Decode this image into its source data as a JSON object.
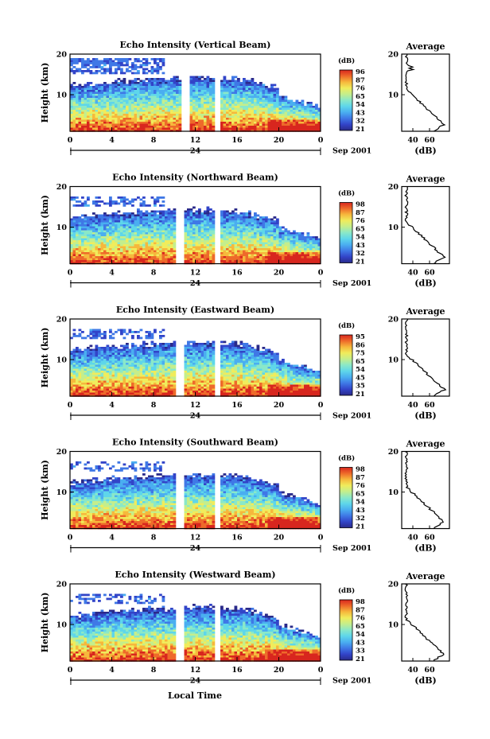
{
  "colorscale": [
    "#2a2a8a",
    "#3244c8",
    "#3f78e6",
    "#4aaef0",
    "#5ed6ea",
    "#8ae8c8",
    "#c4ee8c",
    "#f0ec5c",
    "#f6b83c",
    "#ee6a2a",
    "#d8261e"
  ],
  "chart_data": [
    {
      "type": "heatmap",
      "title": "Echo Intensity (Vertical Beam)",
      "ylabel": "Height (km)",
      "xticks": [
        "0",
        "4",
        "8",
        "12",
        "16",
        "20",
        "0"
      ],
      "yticks": [
        "10",
        "20"
      ],
      "xlim": [
        0,
        24
      ],
      "ylim": [
        1,
        20
      ],
      "date_label": "24",
      "date_suffix": "Sep 2001",
      "colorbar": {
        "unit": "(dB)",
        "ticks": [
          "96",
          "87",
          "76",
          "65",
          "54",
          "43",
          "32",
          "21"
        ]
      },
      "gaps_hours": [
        [
          10.6,
          11.5
        ],
        [
          13.8,
          14.3
        ]
      ],
      "average_profile": {
        "title": "Average",
        "xlabel": "(dB)",
        "xticks": [
          "40",
          "60"
        ],
        "yticks": [
          "10",
          "20"
        ]
      }
    },
    {
      "type": "heatmap",
      "title": "Echo Intensity (Northward Beam)",
      "ylabel": "Height (km)",
      "xticks": [
        "0",
        "4",
        "8",
        "12",
        "16",
        "20",
        "0"
      ],
      "yticks": [
        "10",
        "20"
      ],
      "xlim": [
        0,
        24
      ],
      "ylim": [
        1,
        20
      ],
      "date_label": "24",
      "date_suffix": "Sep 2001",
      "colorbar": {
        "unit": "(dB)",
        "ticks": [
          "98",
          "87",
          "76",
          "65",
          "54",
          "43",
          "32",
          "21"
        ]
      },
      "gaps_hours": [
        [
          10.2,
          11.0
        ],
        [
          13.8,
          14.3
        ]
      ],
      "average_profile": {
        "title": "Average",
        "xlabel": "(dB)",
        "xticks": [
          "40",
          "60"
        ],
        "yticks": [
          "10",
          "20"
        ]
      }
    },
    {
      "type": "heatmap",
      "title": "Echo Intensity (Eastward Beam)",
      "ylabel": "Height (km)",
      "xticks": [
        "0",
        "4",
        "8",
        "12",
        "16",
        "20",
        "0"
      ],
      "yticks": [
        "10",
        "20"
      ],
      "xlim": [
        0,
        24
      ],
      "ylim": [
        1,
        20
      ],
      "date_label": "24",
      "date_suffix": "Sep 2001",
      "colorbar": {
        "unit": "(dB)",
        "ticks": [
          "95",
          "86",
          "75",
          "65",
          "54",
          "45",
          "35",
          "21"
        ]
      },
      "gaps_hours": [
        [
          10.2,
          11.0
        ],
        [
          13.8,
          14.3
        ]
      ],
      "average_profile": {
        "title": "Average",
        "xlabel": "(dB)",
        "xticks": [
          "40",
          "60"
        ],
        "yticks": [
          "10",
          "20"
        ]
      }
    },
    {
      "type": "heatmap",
      "title": "Echo Intensity (Southward Beam)",
      "ylabel": "Height (km)",
      "xticks": [
        "0",
        "4",
        "8",
        "12",
        "16",
        "20",
        "0"
      ],
      "yticks": [
        "10",
        "20"
      ],
      "xlim": [
        0,
        24
      ],
      "ylim": [
        1,
        20
      ],
      "date_label": "24",
      "date_suffix": "Sep 2001",
      "colorbar": {
        "unit": "(dB)",
        "ticks": [
          "98",
          "87",
          "76",
          "65",
          "54",
          "43",
          "32",
          "21"
        ]
      },
      "gaps_hours": [
        [
          10.2,
          11.0
        ],
        [
          13.8,
          14.3
        ]
      ],
      "average_profile": {
        "title": "Average",
        "xlabel": "(dB)",
        "xticks": [
          "40",
          "60"
        ],
        "yticks": [
          "10",
          "20"
        ]
      }
    },
    {
      "type": "heatmap",
      "title": "Echo Intensity (Westward Beam)",
      "ylabel": "Height (km)",
      "xticks": [
        "0",
        "4",
        "8",
        "12",
        "16",
        "20",
        "0"
      ],
      "yticks": [
        "10",
        "20"
      ],
      "xlim": [
        0,
        24
      ],
      "ylim": [
        1,
        20
      ],
      "date_label": "24",
      "date_suffix": "Sep 2001",
      "colorbar": {
        "unit": "(dB)",
        "ticks": [
          "98",
          "87",
          "76",
          "65",
          "54",
          "43",
          "33",
          "21"
        ]
      },
      "gaps_hours": [
        [
          10.2,
          11.0
        ],
        [
          13.8,
          14.3
        ]
      ],
      "average_profile": {
        "title": "Average",
        "xlabel": "(dB)",
        "xticks": [
          "40",
          "60"
        ],
        "yticks": [
          "10",
          "20"
        ]
      }
    }
  ],
  "xlabel_bottom": "Local Time"
}
